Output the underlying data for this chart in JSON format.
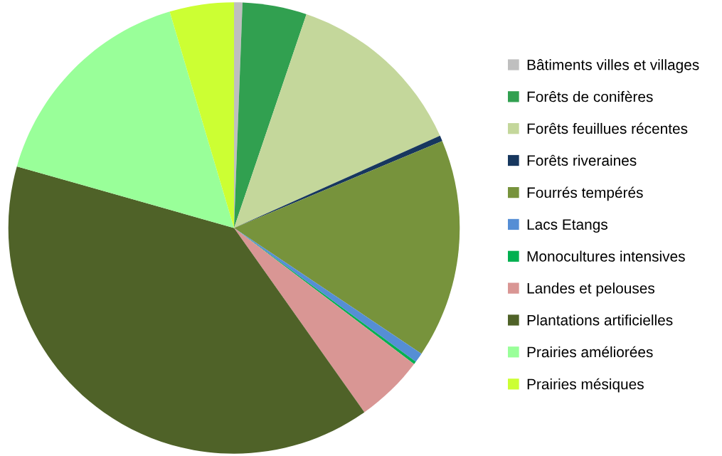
{
  "chart_data": {
    "type": "pie",
    "categories": [
      "Bâtiments villes et villages",
      "Forêts de conifères",
      "Forêts feuillues récentes",
      "Forêts riveraines",
      "Fourrés tempérés",
      "Lacs Etangs",
      "Monocultures intensives",
      "Landes et pelouses",
      "Plantations artificielles",
      "Prairies améliorées",
      "Prairies mésiques"
    ],
    "values": [
      0.6,
      4.6,
      13.1,
      0.4,
      15.7,
      0.7,
      0.2,
      4.9,
      39.2,
      16.0,
      4.6
    ],
    "colors": [
      "#bfbfbf",
      "#31a050",
      "#c4d79b",
      "#17375e",
      "#77933c",
      "#558ed5",
      "#00b050",
      "#d99694",
      "#4f6228",
      "#99ff99",
      "#ccff33"
    ],
    "legend": "right"
  }
}
